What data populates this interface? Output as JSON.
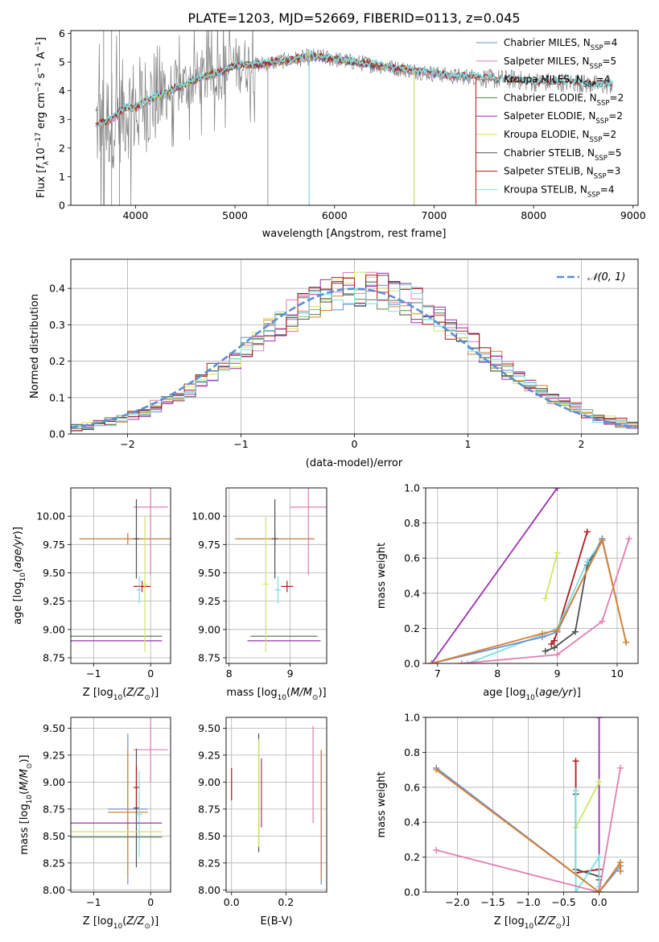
{
  "figure": {
    "title": "PLATE=1203, MJD=52669, FIBERID=0113, z=0.045"
  },
  "colors": {
    "chabrier_miles": "#6b8ed6",
    "salpeter_miles": "#e07fb3",
    "kroupa_miles": "#d9812c",
    "chabrier_elodie": "#5e7d52",
    "salpeter_elodie": "#9b2fb1",
    "kroupa_elodie": "#d1e65e",
    "chabrier_stelib": "#505050",
    "salpeter_stelib": "#b01c1c",
    "kroupa_stelib": "#7ddde0",
    "data": "#808080",
    "normal": "#5b8ed6"
  },
  "chart_data": [
    {
      "id": "spectrum",
      "type": "line",
      "xlabel": "wavelength [Angstrom, rest frame]",
      "ylabel": "Flux [f_λ 10^-17 erg cm^-2 s^-1 A^-1]",
      "xlim": [
        3350,
        9050
      ],
      "ylim": [
        0,
        6.1
      ],
      "xticks": [
        4000,
        5000,
        6000,
        7000,
        8000,
        9000
      ],
      "yticks": [
        0,
        1,
        2,
        3,
        4,
        5,
        6
      ],
      "legend_position": "right",
      "legend": [
        {
          "label": "Chabrier MILES, N",
          "sub": "SSP",
          "value": "=4",
          "color": "chabrier_miles"
        },
        {
          "label": "Salpeter MILES, N",
          "sub": "SSP",
          "value": "=5",
          "color": "salpeter_miles"
        },
        {
          "label": "Kroupa MILES, N",
          "sub": "SSP",
          "value": "=4",
          "color": "kroupa_miles"
        },
        {
          "label": "Chabrier ELODIE, N",
          "sub": "SSP",
          "value": "=2",
          "color": "chabrier_elodie"
        },
        {
          "label": "Salpeter ELODIE, N",
          "sub": "SSP",
          "value": "=2",
          "color": "salpeter_elodie"
        },
        {
          "label": "Kroupa ELODIE, N",
          "sub": "SSP",
          "value": "=2",
          "color": "kroupa_elodie"
        },
        {
          "label": "Chabrier STELIB, N",
          "sub": "SSP",
          "value": "=5",
          "color": "chabrier_stelib"
        },
        {
          "label": "Salpeter STELIB, N",
          "sub": "SSP",
          "value": "=3",
          "color": "salpeter_stelib"
        },
        {
          "label": "Kroupa STELIB, N",
          "sub": "SSP",
          "value": "=4",
          "color": "kroupa_stelib"
        }
      ],
      "continuum": [
        [
          3600,
          2.8
        ],
        [
          3700,
          2.9
        ],
        [
          3800,
          3.1
        ],
        [
          3900,
          3.4
        ],
        [
          4000,
          3.4
        ],
        [
          4100,
          3.6
        ],
        [
          4200,
          3.8
        ],
        [
          4300,
          3.9
        ],
        [
          4400,
          4.1
        ],
        [
          4500,
          4.2
        ],
        [
          4600,
          4.4
        ],
        [
          4700,
          4.5
        ],
        [
          4800,
          4.6
        ],
        [
          4900,
          4.7
        ],
        [
          5000,
          4.9
        ],
        [
          5200,
          4.9
        ],
        [
          5400,
          5.0
        ],
        [
          5600,
          5.1
        ],
        [
          5800,
          5.2
        ],
        [
          6000,
          5.1
        ],
        [
          6200,
          5.0
        ],
        [
          6400,
          4.9
        ],
        [
          6600,
          4.8
        ],
        [
          6800,
          4.7
        ],
        [
          7000,
          4.6
        ],
        [
          7200,
          4.5
        ],
        [
          7400,
          4.5
        ],
        [
          7600,
          4.4
        ],
        [
          7800,
          4.4
        ],
        [
          8000,
          4.3
        ],
        [
          8200,
          4.3
        ],
        [
          8400,
          4.3
        ],
        [
          8600,
          4.2
        ],
        [
          8800,
          4.2
        ]
      ],
      "model_ranges": {
        "chabrier_miles": [
          3600,
          7400
        ],
        "salpeter_miles": [
          3600,
          7400
        ],
        "kroupa_miles": [
          3600,
          7400
        ],
        "chabrier_elodie": [
          4100,
          6800
        ],
        "salpeter_elodie": [
          4100,
          6800
        ],
        "kroupa_elodie": [
          4100,
          6800
        ],
        "chabrier_stelib": [
          3600,
          8800
        ],
        "salpeter_stelib": [
          3600,
          8800
        ],
        "kroupa_stelib": [
          3600,
          8800
        ]
      }
    },
    {
      "id": "residuals",
      "type": "histogram",
      "xlabel": "(data-model)/error",
      "ylabel": "Normed distribution",
      "xlim": [
        -2.5,
        2.5
      ],
      "ylim": [
        0,
        0.48
      ],
      "xticks": [
        -2,
        -1,
        0,
        1,
        2
      ],
      "yticks": [
        0.0,
        0.1,
        0.2,
        0.3,
        0.4
      ],
      "bin_width": 0.1,
      "legend_position": "top-right",
      "normal_curve_label": "𝒩(0, 1)"
    },
    {
      "id": "age_vs_Z",
      "type": "scatter",
      "xlabel": "Z [log10(Z/Z⊙)]",
      "ylabel": "age [log10(age/yr)]",
      "xlim": [
        -1.4,
        0.35
      ],
      "ylim": [
        8.7,
        10.25
      ],
      "xticks": [
        -1,
        0
      ],
      "yticks": [
        8.75,
        9.0,
        9.25,
        9.5,
        9.75,
        10.0
      ],
      "points": [
        {
          "model": "chabrier_miles",
          "x": -0.4,
          "xerr": 0.85,
          "y": 9.8,
          "yerr": 0.05
        },
        {
          "model": "kroupa_miles",
          "x": -0.4,
          "xerr": 0.85,
          "y": 9.8,
          "yerr": 0.05
        },
        {
          "model": "salpeter_miles",
          "x": 0.0,
          "xerr": 0.3,
          "y": 10.08,
          "yerr": 0.6
        },
        {
          "model": "chabrier_stelib",
          "x": -0.25,
          "xerr": 0.05,
          "y": 9.8,
          "yerr": 0.35
        },
        {
          "model": "salpeter_stelib",
          "x": -0.15,
          "xerr": 0.15,
          "y": 9.38,
          "yerr": 0.05
        },
        {
          "model": "kroupa_stelib",
          "x": -0.2,
          "xerr": 0.05,
          "y": 9.35,
          "yerr": 0.12
        },
        {
          "model": "chabrier_elodie",
          "x": -0.6,
          "xerr": 0.8,
          "y": 8.94,
          "yerr": 0.0
        },
        {
          "model": "salpeter_elodie",
          "x": -0.6,
          "xerr": 0.8,
          "y": 8.9,
          "yerr": 0.0
        },
        {
          "model": "kroupa_elodie",
          "x": -0.1,
          "xerr": 0.05,
          "y": 9.4,
          "yerr": 0.6
        }
      ]
    },
    {
      "id": "age_vs_mass",
      "type": "scatter",
      "xlabel": "mass [log10(M/M⊙)]",
      "ylabel": "",
      "xlim": [
        7.95,
        9.6
      ],
      "ylim": [
        8.7,
        10.25
      ],
      "xticks": [
        8,
        9
      ],
      "yticks": [
        8.75,
        9.0,
        9.25,
        9.5,
        9.75,
        10.0
      ],
      "points": [
        {
          "model": "chabrier_miles",
          "x": 8.75,
          "xerr": 0.65,
          "y": 9.8,
          "yerr": 0.05
        },
        {
          "model": "kroupa_miles",
          "x": 8.75,
          "xerr": 0.65,
          "y": 9.8,
          "yerr": 0.05
        },
        {
          "model": "salpeter_miles",
          "x": 9.3,
          "xerr": 0.3,
          "y": 10.08,
          "yerr": 0.6
        },
        {
          "model": "chabrier_stelib",
          "x": 8.75,
          "xerr": 0.05,
          "y": 9.8,
          "yerr": 0.35
        },
        {
          "model": "salpeter_stelib",
          "x": 8.95,
          "xerr": 0.1,
          "y": 9.38,
          "yerr": 0.05
        },
        {
          "model": "kroupa_stelib",
          "x": 8.8,
          "xerr": 0.05,
          "y": 9.35,
          "yerr": 0.12
        },
        {
          "model": "chabrier_elodie",
          "x": 8.9,
          "xerr": 0.55,
          "y": 8.94,
          "yerr": 0.0
        },
        {
          "model": "salpeter_elodie",
          "x": 8.9,
          "xerr": 0.6,
          "y": 8.9,
          "yerr": 0.0
        },
        {
          "model": "kroupa_elodie",
          "x": 8.6,
          "xerr": 0.05,
          "y": 9.4,
          "yerr": 0.6
        }
      ]
    },
    {
      "id": "weight_vs_age",
      "type": "line",
      "xlabel": "age [log10(age/yr)]",
      "ylabel": "mass weight",
      "xlim": [
        6.8,
        10.35
      ],
      "ylim": [
        0,
        1.0
      ],
      "xticks": [
        7,
        8,
        9,
        10
      ],
      "yticks": [
        0.0,
        0.2,
        0.4,
        0.6,
        0.8,
        1.0
      ],
      "series": [
        {
          "model": "salpeter_elodie",
          "x": [
            6.9,
            9.0
          ],
          "y": [
            0.0,
            1.0
          ]
        },
        {
          "model": "kroupa_elodie",
          "x": [
            8.8,
            9.0
          ],
          "y": [
            0.37,
            0.63
          ]
        },
        {
          "model": "salpeter_stelib",
          "x": [
            8.9,
            8.95,
            9.5
          ],
          "y": [
            0.11,
            0.13,
            0.75
          ]
        },
        {
          "model": "chabrier_stelib",
          "x": [
            8.8,
            8.95,
            9.3,
            9.5,
            9.75
          ],
          "y": [
            0.07,
            0.09,
            0.18,
            0.56,
            0.71
          ]
        },
        {
          "model": "kroupa_stelib",
          "x": [
            7.5,
            8.8,
            9.0,
            9.5,
            9.75
          ],
          "y": [
            0.0,
            0.17,
            0.2,
            0.58,
            0.7
          ]
        },
        {
          "model": "chabrier_miles",
          "x": [
            6.9,
            8.75,
            9.0,
            9.75,
            10.15
          ],
          "y": [
            0.0,
            0.15,
            0.18,
            0.71,
            0.12
          ]
        },
        {
          "model": "salpeter_miles",
          "x": [
            7.4,
            9.0,
            9.75,
            10.2
          ],
          "y": [
            0.0,
            0.05,
            0.24,
            0.71
          ]
        },
        {
          "model": "kroupa_miles",
          "x": [
            6.9,
            8.75,
            9.0,
            9.75,
            10.15
          ],
          "y": [
            0.0,
            0.17,
            0.19,
            0.7,
            0.12
          ]
        }
      ]
    },
    {
      "id": "mass_vs_Z",
      "type": "scatter",
      "xlabel": "Z [log10(Z/Z⊙)]",
      "ylabel": "mass [log10(M/M⊙)]",
      "xlim": [
        -1.4,
        0.35
      ],
      "ylim": [
        7.98,
        9.6
      ],
      "xticks": [
        -1,
        0
      ],
      "yticks": [
        8.0,
        8.25,
        8.5,
        8.75,
        9.0,
        9.25,
        9.5
      ],
      "points": [
        {
          "model": "chabrier_miles",
          "x": -0.4,
          "xerr": 0.35,
          "y": 8.75,
          "yerr": 0.7
        },
        {
          "model": "kroupa_miles",
          "x": -0.4,
          "xerr": 0.35,
          "y": 8.72,
          "yerr": 0.6
        },
        {
          "model": "salpeter_miles",
          "x": 0.0,
          "xerr": 0.3,
          "y": 9.3,
          "yerr": 0.3
        },
        {
          "model": "chabrier_stelib",
          "x": -0.25,
          "xerr": 0.05,
          "y": 8.76,
          "yerr": 0.55
        },
        {
          "model": "salpeter_stelib",
          "x": -0.25,
          "xerr": 0.05,
          "y": 8.95,
          "yerr": 0.2
        },
        {
          "model": "kroupa_stelib",
          "x": -0.2,
          "xerr": 0.05,
          "y": 8.7,
          "yerr": 0.4
        },
        {
          "model": "chabrier_elodie",
          "x": -0.6,
          "xerr": 0.8,
          "y": 8.49,
          "yerr": 0.0
        },
        {
          "model": "salpeter_elodie",
          "x": -0.6,
          "xerr": 0.8,
          "y": 8.62,
          "yerr": 0.0
        },
        {
          "model": "kroupa_elodie",
          "x": -0.6,
          "xerr": 0.8,
          "y": 8.54,
          "yerr": 0.0
        }
      ]
    },
    {
      "id": "mass_vs_ebv",
      "type": "scatter",
      "xlabel": "E(B-V)",
      "ylabel": "",
      "xlim": [
        -0.02,
        0.35
      ],
      "ylim": [
        7.98,
        9.6
      ],
      "xticks": [
        0.0,
        0.2
      ],
      "yticks": [
        8.0,
        8.25,
        8.5,
        8.75,
        9.0,
        9.25,
        9.5
      ],
      "points": [
        {
          "model": "salpeter_stelib",
          "x": 0.0,
          "xerr": 0.0,
          "y": 8.98,
          "yerr": 0.15
        },
        {
          "model": "chabrier_stelib",
          "x": 0.1,
          "xerr": 0.0,
          "y": 8.9,
          "yerr": 0.55
        },
        {
          "model": "kroupa_elodie",
          "x": 0.1,
          "xerr": 0.0,
          "y": 8.9,
          "yerr": 0.5
        },
        {
          "model": "salpeter_elodie",
          "x": 0.11,
          "xerr": 0.0,
          "y": 8.9,
          "yerr": 0.32
        },
        {
          "model": "salpeter_miles",
          "x": 0.3,
          "xerr": 0.0,
          "y": 9.07,
          "yerr": 0.45
        },
        {
          "model": "chabrier_miles",
          "x": 0.33,
          "xerr": 0.0,
          "y": 8.67,
          "yerr": 0.62
        },
        {
          "model": "kroupa_miles",
          "x": 0.33,
          "xerr": 0.0,
          "y": 8.7,
          "yerr": 0.6
        }
      ]
    },
    {
      "id": "weight_vs_Z",
      "type": "line",
      "xlabel": "Z [log10(Z/Z⊙)]",
      "ylabel": "mass weight",
      "xlim": [
        -2.45,
        0.55
      ],
      "ylim": [
        0,
        1.0
      ],
      "xticks": [
        -2.0,
        -1.5,
        -1.0,
        -0.5,
        0.0
      ],
      "yticks": [
        0.0,
        0.2,
        0.4,
        0.6,
        0.8,
        1.0
      ],
      "series": [
        {
          "model": "salpeter_elodie",
          "x": [
            0.0,
            0.0
          ],
          "y": [
            0.0,
            1.0
          ]
        },
        {
          "model": "kroupa_elodie",
          "x": [
            -0.33,
            0.0
          ],
          "y": [
            0.37,
            0.63
          ]
        },
        {
          "model": "salpeter_stelib",
          "x": [
            -0.33,
            -0.33,
            0.0,
            0.0
          ],
          "y": [
            0.75,
            0.11,
            0.13,
            0.13
          ]
        },
        {
          "model": "chabrier_stelib",
          "x": [
            -0.33,
            -0.33,
            0.0,
            0.0
          ],
          "y": [
            0.56,
            0.13,
            0.09,
            0.07
          ]
        },
        {
          "model": "kroupa_stelib",
          "x": [
            -0.33,
            -0.33,
            0.0,
            0.0
          ],
          "y": [
            0.58,
            0.0,
            0.2,
            0.03
          ]
        },
        {
          "model": "chabrier_miles",
          "x": [
            -2.3,
            0.0,
            0.3,
            0.3
          ],
          "y": [
            0.71,
            0.0,
            0.15,
            0.12
          ]
        },
        {
          "model": "salpeter_miles",
          "x": [
            -2.3,
            0.0,
            0.3
          ],
          "y": [
            0.24,
            0.0,
            0.71
          ]
        },
        {
          "model": "kroupa_miles",
          "x": [
            -2.3,
            0.0,
            0.3,
            0.3
          ],
          "y": [
            0.7,
            0.0,
            0.17,
            0.12
          ]
        }
      ]
    }
  ]
}
